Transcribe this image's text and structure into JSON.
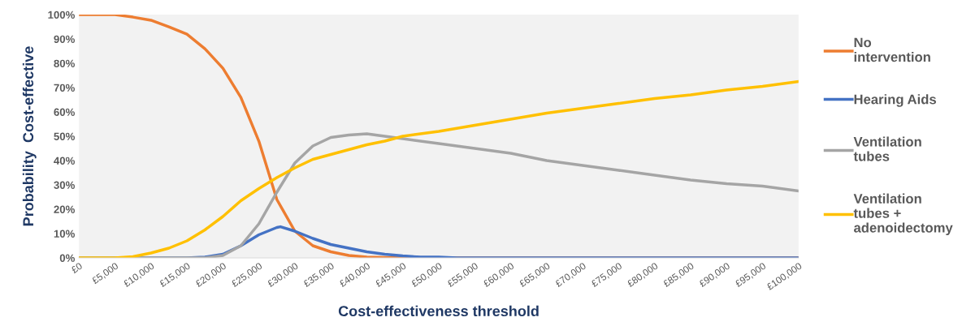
{
  "chart_data": {
    "type": "line",
    "xlabel": "Cost-effectiveness threshold",
    "ylabel": "Probability  Cost-effective",
    "xlim": [
      0,
      100000
    ],
    "xticks": [
      {
        "value": 0,
        "label": "£0"
      },
      {
        "value": 5000,
        "label": "£5,000"
      },
      {
        "value": 10000,
        "label": "£10,000"
      },
      {
        "value": 15000,
        "label": "£15,000"
      },
      {
        "value": 20000,
        "label": "£20,000"
      },
      {
        "value": 25000,
        "label": "£25,000"
      },
      {
        "value": 30000,
        "label": "£30,000"
      },
      {
        "value": 35000,
        "label": "£35,000"
      },
      {
        "value": 40000,
        "label": "£40,000"
      },
      {
        "value": 45000,
        "label": "£45,000"
      },
      {
        "value": 50000,
        "label": "£50,000"
      },
      {
        "value": 55000,
        "label": "£55,000"
      },
      {
        "value": 60000,
        "label": "£60,000"
      },
      {
        "value": 65000,
        "label": "£65,000"
      },
      {
        "value": 70000,
        "label": "£70,000"
      },
      {
        "value": 75000,
        "label": "£75,000"
      },
      {
        "value": 80000,
        "label": "£80,000"
      },
      {
        "value": 85000,
        "label": "£85,000"
      },
      {
        "value": 90000,
        "label": "£90,000"
      },
      {
        "value": 95000,
        "label": "£95,000"
      },
      {
        "value": 100000,
        "label": "£100,000"
      }
    ],
    "ylim": [
      0,
      100
    ],
    "yticks": [
      {
        "value": 0,
        "label": "0%"
      },
      {
        "value": 10,
        "label": "10%"
      },
      {
        "value": 20,
        "label": "20%"
      },
      {
        "value": 30,
        "label": "30%"
      },
      {
        "value": 40,
        "label": "40%"
      },
      {
        "value": 50,
        "label": "50%"
      },
      {
        "value": 60,
        "label": "60%"
      },
      {
        "value": 70,
        "label": "70%"
      },
      {
        "value": 80,
        "label": "80%"
      },
      {
        "value": 90,
        "label": "90%"
      },
      {
        "value": 100,
        "label": "100%"
      }
    ],
    "grid": false,
    "legend": "right",
    "marker": "none",
    "line_style": "solid",
    "series": [
      {
        "name": "No\nintervention",
        "color": "#ed7d31",
        "x": [
          0,
          5000,
          7500,
          10000,
          12500,
          15000,
          17500,
          20000,
          22500,
          25000,
          27500,
          30000,
          32500,
          35000,
          37500,
          40000,
          45000,
          100000
        ],
        "values": [
          100,
          100,
          99,
          97.7,
          95,
          92,
          86,
          78,
          66,
          48,
          24,
          11,
          5,
          2.5,
          1,
          0.3,
          0,
          0
        ]
      },
      {
        "name": "Hearing Aids",
        "color": "#4472c4",
        "x": [
          0,
          15000,
          17500,
          20000,
          22500,
          25000,
          27500,
          28000,
          30000,
          32500,
          35000,
          37500,
          40000,
          42500,
          45000,
          47500,
          50000,
          52500,
          100000
        ],
        "values": [
          0,
          0,
          0.3,
          1.5,
          5,
          9.5,
          12.5,
          12.8,
          11,
          8,
          5.5,
          4,
          2.5,
          1.5,
          0.8,
          0.3,
          0.3,
          0,
          0
        ]
      },
      {
        "name": "Ventilation\ntubes",
        "color": "#a5a5a5",
        "x": [
          0,
          17500,
          20000,
          22500,
          25000,
          27500,
          30000,
          32500,
          35000,
          37500,
          40000,
          42500,
          45000,
          50000,
          55000,
          60000,
          65000,
          70000,
          75000,
          80000,
          85000,
          90000,
          95000,
          100000
        ],
        "values": [
          0,
          0,
          1,
          5,
          14,
          27,
          39,
          46,
          49.5,
          50.5,
          51,
          50,
          49,
          47,
          45,
          43,
          40,
          38,
          36,
          34,
          32,
          30.5,
          29.5,
          27.5
        ]
      },
      {
        "name": "Ventilation\ntubes +\nadenoidectomy",
        "color": "#ffc000",
        "x": [
          0,
          5000,
          7500,
          10000,
          12500,
          15000,
          17500,
          20000,
          22500,
          25000,
          27500,
          30000,
          32500,
          35000,
          37500,
          40000,
          42500,
          45000,
          50000,
          55000,
          60000,
          65000,
          70000,
          75000,
          80000,
          85000,
          90000,
          95000,
          100000
        ],
        "values": [
          0,
          0,
          0.5,
          2,
          4,
          7,
          11.5,
          17,
          23.5,
          28.5,
          33,
          37,
          40.5,
          42.5,
          44.5,
          46.5,
          48,
          50,
          52,
          54.5,
          57,
          59.5,
          61.5,
          63.5,
          65.5,
          67,
          69,
          70.5,
          72.5
        ]
      }
    ]
  }
}
